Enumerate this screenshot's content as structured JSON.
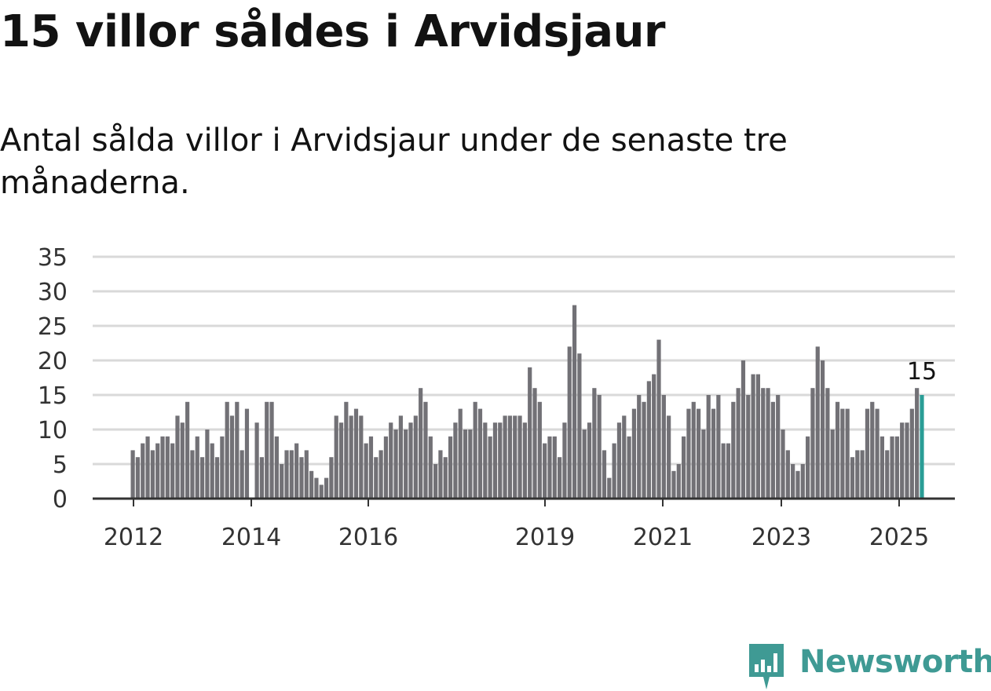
{
  "title": "15 villor såldes i Arvidsjaur",
  "subtitle": "Antal sålda villor i Arvidsjaur under de senaste tre månaderna.",
  "brand": {
    "name": "Newsworthy"
  },
  "colors": {
    "bar": "#727176",
    "highlight": "#2a9d96",
    "grid": "#d9d9d9",
    "axis": "#333333",
    "brand": "#3f9a94"
  },
  "chart_data": {
    "type": "bar",
    "title": "15 villor såldes i Arvidsjaur",
    "subtitle": "Antal sålda villor i Arvidsjaur under de senaste tre månaderna.",
    "ylim": [
      0,
      35
    ],
    "yticks": [
      "0",
      "5",
      "10",
      "15",
      "20",
      "25",
      "30",
      "35"
    ],
    "xticks": [
      "2012",
      "2014",
      "2016",
      "2019",
      "2021",
      "2023",
      "2025"
    ],
    "grid": true,
    "highlight_label": "15",
    "values": [
      7,
      6,
      8,
      9,
      7,
      8,
      9,
      9,
      8,
      12,
      11,
      14,
      7,
      9,
      6,
      10,
      8,
      6,
      9,
      14,
      12,
      14,
      7,
      13,
      0,
      11,
      6,
      14,
      14,
      9,
      5,
      7,
      7,
      8,
      6,
      7,
      4,
      3,
      2,
      3,
      6,
      12,
      11,
      14,
      12,
      13,
      12,
      8,
      9,
      6,
      7,
      9,
      11,
      10,
      12,
      10,
      11,
      12,
      16,
      14,
      9,
      5,
      7,
      6,
      9,
      11,
      13,
      10,
      10,
      14,
      13,
      11,
      9,
      11,
      11,
      12,
      12,
      12,
      12,
      11,
      19,
      16,
      14,
      8,
      9,
      9,
      6,
      11,
      22,
      28,
      21,
      10,
      11,
      16,
      15,
      7,
      3,
      8,
      11,
      12,
      9,
      13,
      15,
      14,
      17,
      18,
      23,
      15,
      12,
      4,
      5,
      9,
      13,
      14,
      13,
      10,
      15,
      13,
      15,
      8,
      8,
      14,
      16,
      20,
      15,
      18,
      18,
      16,
      16,
      14,
      15,
      10,
      7,
      5,
      4,
      5,
      9,
      16,
      22,
      20,
      16,
      10,
      14,
      13,
      13,
      6,
      7,
      7,
      13,
      14,
      13,
      9,
      7,
      9,
      9,
      11,
      11,
      13,
      16,
      15
    ]
  }
}
